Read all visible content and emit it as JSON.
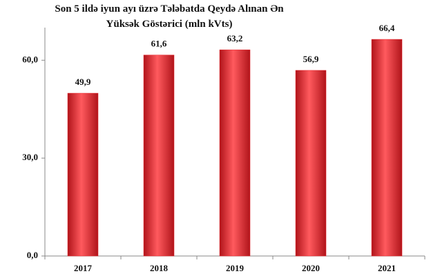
{
  "chart_data": {
    "type": "bar",
    "title": "Son 5 ildə iyun ayı üzrə Tələbatda Qeydə Alınan Ən Yüksək Göstərici (mln kVts)",
    "categories": [
      "2017",
      "2018",
      "2019",
      "2020",
      "2021"
    ],
    "values": [
      49.9,
      61.6,
      63.2,
      56.9,
      66.4
    ],
    "value_labels": [
      "49,9",
      "61,6",
      "63,2",
      "56,9",
      "66,4"
    ],
    "color": "#e8262c",
    "ylim": [
      0,
      70
    ],
    "yticks": [
      {
        "value": 0,
        "label": "0,0"
      },
      {
        "value": 30,
        "label": "30,0"
      },
      {
        "value": 60,
        "label": "60,0"
      }
    ],
    "grid": false
  }
}
